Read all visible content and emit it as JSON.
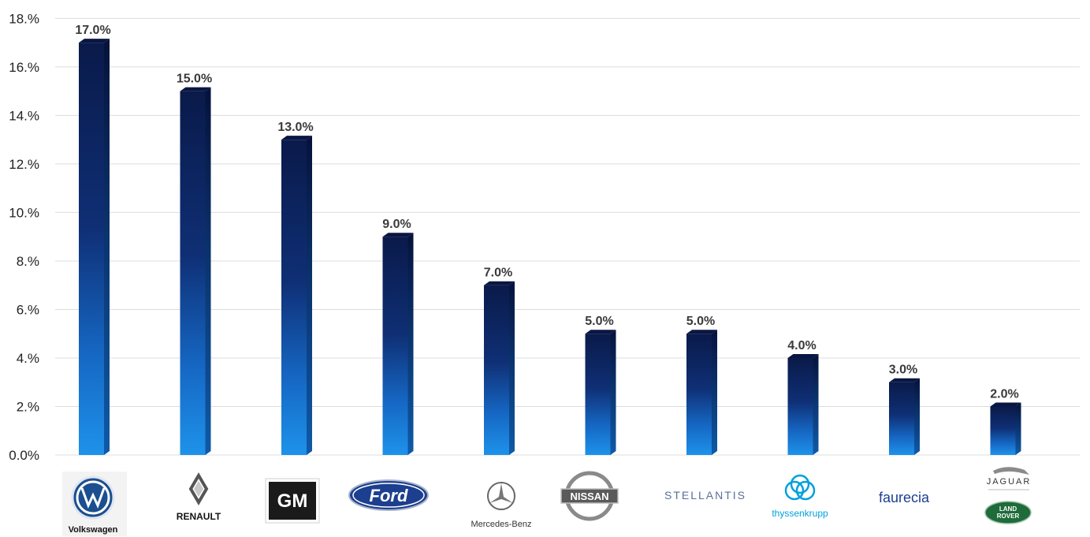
{
  "chart_data": {
    "type": "bar",
    "categories": [
      "Volkswagen",
      "RENAULT",
      "GM",
      "Ford",
      "Mercedes-Benz",
      "NISSAN",
      "STELLANTIS",
      "thyssenkrupp",
      "faurecia",
      "JAGUAR LAND ROVER"
    ],
    "values": [
      17.0,
      15.0,
      13.0,
      9.0,
      7.0,
      5.0,
      5.0,
      4.0,
      3.0,
      2.0
    ],
    "data_labels": [
      "17.0%",
      "15.0%",
      "13.0%",
      "9.0%",
      "7.0%",
      "5.0%",
      "5.0%",
      "4.0%",
      "3.0%",
      "2.0%"
    ],
    "yticks": [
      0,
      2,
      4,
      6,
      8,
      10,
      12,
      14,
      16,
      18
    ],
    "ytick_labels": [
      "0.0%",
      "2.%",
      "4.%",
      "6.%",
      "8.%",
      "10.%",
      "12.%",
      "14.%",
      "16.%",
      "18.%"
    ],
    "ylim": [
      0,
      18.5
    ],
    "grid": true,
    "legend": "none",
    "title": "",
    "xlabel": "",
    "ylabel": ""
  },
  "logos": {
    "vw": {
      "caption": "Volkswagen",
      "mark": "VW"
    },
    "renault": {
      "caption": "RENAULT"
    },
    "gm": {
      "mark": "GM"
    },
    "ford": {
      "mark": "Ford"
    },
    "mercedes": {
      "caption": "Mercedes-Benz"
    },
    "nissan": {
      "mark": "NISSAN"
    },
    "stellantis": {
      "mark": "STELLANTIS"
    },
    "thyssenkrupp": {
      "caption": "thyssenkrupp"
    },
    "faurecia": {
      "mark": "faurecia"
    },
    "jlr": {
      "jaguar": "JAGUAR",
      "land": "LAND",
      "rover": "ROVER"
    }
  },
  "colors": {
    "bar_top": "#0b1e52",
    "bar_bottom": "#1e90e8",
    "gridline": "#dcdcdc",
    "vw_blue": "#1b4f8f",
    "ford_blue": "#1c3f8f",
    "jlr_green": "#1f6b3a"
  }
}
